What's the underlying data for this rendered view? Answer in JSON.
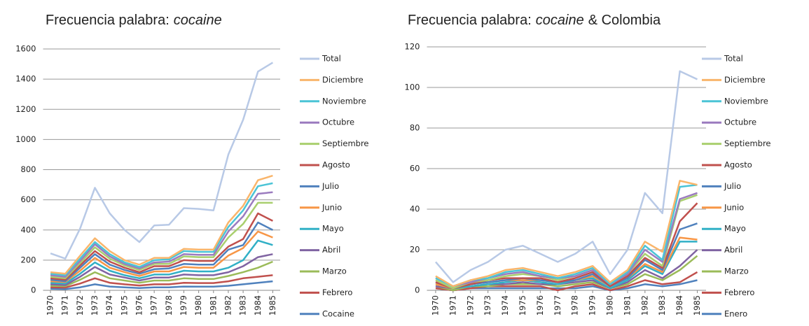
{
  "chart_data": [
    {
      "type": "line",
      "title": [
        "Frecuencia palabra:",
        "cocaine"
      ],
      "categories": [
        "1970",
        "1971",
        "1972",
        "1973",
        "1974",
        "1975",
        "1976",
        "1977",
        "1978",
        "1979",
        "1980",
        "1981",
        "1982",
        "1983",
        "1984",
        "1985"
      ],
      "ylim": [
        0,
        1600
      ],
      "yticks": [
        0,
        200,
        400,
        600,
        800,
        1000,
        1200,
        1400,
        1600
      ],
      "grid": true,
      "series": [
        {
          "name": "Total",
          "color": "#b8c9e6",
          "values": [
            245,
            210,
            410,
            680,
            510,
            400,
            320,
            430,
            435,
            545,
            540,
            530,
            900,
            1130,
            1450,
            1510
          ]
        },
        {
          "name": "Diciembre",
          "color": "#f9b56b",
          "values": [
            120,
            110,
            230,
            345,
            260,
            200,
            170,
            215,
            215,
            275,
            270,
            270,
            450,
            560,
            730,
            760
          ]
        },
        {
          "name": "Noviembre",
          "color": "#4bc4d6",
          "values": [
            110,
            100,
            210,
            320,
            240,
            185,
            155,
            200,
            205,
            260,
            255,
            255,
            420,
            530,
            690,
            710
          ]
        },
        {
          "name": "Octubre",
          "color": "#9b7bbf",
          "values": [
            100,
            90,
            195,
            305,
            225,
            175,
            145,
            185,
            190,
            240,
            235,
            235,
            390,
            490,
            640,
            650
          ]
        },
        {
          "name": "Septiembre",
          "color": "#a9cf6e",
          "values": [
            90,
            80,
            180,
            285,
            210,
            165,
            135,
            175,
            175,
            225,
            220,
            220,
            350,
            440,
            580,
            580
          ]
        },
        {
          "name": "Agosto",
          "color": "#c0504d",
          "values": [
            80,
            70,
            165,
            260,
            190,
            150,
            120,
            160,
            160,
            200,
            195,
            195,
            290,
            340,
            510,
            460
          ]
        },
        {
          "name": "Julio",
          "color": "#4f81bd",
          "values": [
            70,
            60,
            150,
            240,
            170,
            135,
            110,
            140,
            145,
            175,
            170,
            170,
            270,
            300,
            450,
            400
          ]
        },
        {
          "name": "Junio",
          "color": "#f79646",
          "values": [
            60,
            55,
            130,
            215,
            150,
            120,
            95,
            125,
            125,
            155,
            150,
            150,
            230,
            280,
            390,
            350
          ]
        },
        {
          "name": "Mayo",
          "color": "#31b0c6",
          "values": [
            50,
            45,
            110,
            185,
            130,
            100,
            80,
            105,
            105,
            130,
            125,
            125,
            150,
            200,
            330,
            300
          ]
        },
        {
          "name": "Abril",
          "color": "#8064a2",
          "values": [
            40,
            35,
            90,
            155,
            105,
            85,
            65,
            85,
            85,
            105,
            100,
            100,
            120,
            160,
            220,
            240
          ]
        },
        {
          "name": "Marzo",
          "color": "#9bbb59",
          "values": [
            30,
            28,
            70,
            120,
            80,
            65,
            50,
            65,
            65,
            80,
            75,
            75,
            95,
            120,
            150,
            190
          ]
        },
        {
          "name": "Febrero",
          "color": "#c0504d",
          "values": [
            20,
            18,
            45,
            80,
            50,
            40,
            32,
            40,
            40,
            50,
            48,
            48,
            60,
            80,
            90,
            100
          ]
        },
        {
          "name": "Cocaine",
          "color": "#4f81bd",
          "values": [
            10,
            8,
            20,
            40,
            25,
            20,
            15,
            20,
            20,
            25,
            24,
            24,
            30,
            40,
            50,
            60
          ]
        }
      ]
    },
    {
      "type": "line",
      "title": [
        "Frecuencia palabra:",
        "cocaine",
        "& Colombia"
      ],
      "categories": [
        "1970",
        "1971",
        "1972",
        "1973",
        "1974",
        "1975",
        "1976",
        "1977",
        "1978",
        "1979",
        "1980",
        "1981",
        "1982",
        "1983",
        "1984",
        "1985"
      ],
      "ylim": [
        0,
        120
      ],
      "yticks": [
        0,
        20,
        40,
        60,
        80,
        100,
        120
      ],
      "grid": true,
      "series": [
        {
          "name": "Total",
          "color": "#b8c9e6",
          "values": [
            14,
            4,
            10,
            14,
            20,
            22,
            18,
            14,
            18,
            24,
            8,
            20,
            48,
            38,
            108,
            104
          ]
        },
        {
          "name": "Diciembre",
          "color": "#f9b56b",
          "values": [
            7,
            2,
            5,
            7,
            10,
            11,
            9,
            7,
            9,
            12,
            4,
            10,
            24,
            19,
            54,
            52
          ]
        },
        {
          "name": "Noviembre",
          "color": "#4bc4d6",
          "values": [
            6,
            2,
            5,
            6,
            9,
            10,
            8,
            6,
            8,
            11,
            3,
            9,
            22,
            15,
            51,
            52
          ]
        },
        {
          "name": "Octubre",
          "color": "#9b7bbf",
          "values": [
            6,
            2,
            4,
            6,
            8,
            9,
            7,
            6,
            7,
            10,
            3,
            8,
            20,
            14,
            45,
            48
          ]
        },
        {
          "name": "Septiembre",
          "color": "#a9cf6e",
          "values": [
            5,
            1,
            4,
            5,
            7,
            8,
            7,
            5,
            7,
            10,
            3,
            8,
            18,
            12,
            44,
            47
          ]
        },
        {
          "name": "Agosto",
          "color": "#c0504d",
          "values": [
            4,
            1,
            3,
            5,
            6,
            6,
            6,
            4,
            6,
            9,
            2,
            7,
            16,
            11,
            34,
            43
          ]
        },
        {
          "name": "Julio",
          "color": "#4f81bd",
          "values": [
            4,
            1,
            3,
            4,
            5,
            6,
            5,
            4,
            5,
            8,
            2,
            6,
            15,
            10,
            30,
            33
          ]
        },
        {
          "name": "Junio",
          "color": "#f79646",
          "values": [
            3,
            1,
            3,
            4,
            5,
            5,
            5,
            4,
            5,
            7,
            2,
            6,
            13,
            9,
            26,
            25
          ]
        },
        {
          "name": "Mayo",
          "color": "#31b0c6",
          "values": [
            3,
            1,
            2,
            3,
            4,
            5,
            4,
            3,
            5,
            6,
            1,
            5,
            12,
            8,
            24,
            24
          ]
        },
        {
          "name": "Abril",
          "color": "#8064a2",
          "values": [
            2,
            1,
            2,
            3,
            3,
            4,
            3,
            3,
            4,
            5,
            1,
            4,
            10,
            6,
            12,
            20
          ]
        },
        {
          "name": "Marzo",
          "color": "#9bbb59",
          "values": [
            2,
            0,
            2,
            2,
            3,
            3,
            3,
            2,
            3,
            4,
            1,
            3,
            8,
            5,
            10,
            17
          ]
        },
        {
          "name": "Febrero",
          "color": "#c0504d",
          "values": [
            1,
            0,
            1,
            2,
            2,
            2,
            2,
            0,
            2,
            3,
            0,
            2,
            5,
            3,
            4,
            9
          ]
        },
        {
          "name": "Enero",
          "color": "#4f81bd",
          "values": [
            1,
            0,
            1,
            1,
            1,
            1,
            1,
            1,
            1,
            2,
            0,
            1,
            3,
            2,
            3,
            5
          ]
        }
      ]
    }
  ]
}
